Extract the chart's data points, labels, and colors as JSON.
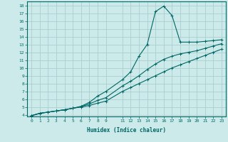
{
  "xlabel": "Humidex (Indice chaleur)",
  "background_color": "#cceaea",
  "grid_color": "#aacece",
  "line_color": "#006666",
  "xlim": [
    -0.5,
    23.5
  ],
  "ylim": [
    3.8,
    18.5
  ],
  "xticks": [
    0,
    1,
    2,
    3,
    4,
    5,
    6,
    7,
    8,
    9,
    11,
    12,
    13,
    14,
    15,
    16,
    17,
    18,
    19,
    20,
    21,
    22,
    23
  ],
  "yticks": [
    4,
    5,
    6,
    7,
    8,
    9,
    10,
    11,
    12,
    13,
    14,
    15,
    16,
    17,
    18
  ],
  "line1_x": [
    0,
    1,
    2,
    3,
    4,
    5,
    6,
    7,
    8,
    9,
    11,
    12,
    13,
    14,
    15,
    16,
    17,
    18,
    19,
    20,
    21,
    22,
    23
  ],
  "line1_y": [
    3.9,
    4.2,
    4.35,
    4.5,
    4.65,
    4.85,
    5.0,
    5.2,
    5.5,
    5.75,
    7.0,
    7.5,
    8.0,
    8.5,
    9.0,
    9.5,
    10.0,
    10.4,
    10.8,
    11.2,
    11.6,
    12.0,
    12.4
  ],
  "line2_x": [
    0,
    1,
    2,
    3,
    4,
    5,
    6,
    7,
    8,
    9,
    11,
    12,
    13,
    14,
    15,
    16,
    17,
    18,
    19,
    20,
    21,
    22,
    23
  ],
  "line2_y": [
    3.9,
    4.2,
    4.35,
    4.5,
    4.65,
    4.85,
    5.05,
    5.4,
    5.85,
    6.2,
    7.7,
    8.3,
    9.0,
    9.8,
    10.5,
    11.1,
    11.5,
    11.8,
    12.0,
    12.2,
    12.5,
    12.8,
    13.1
  ],
  "line3_x": [
    0,
    1,
    2,
    3,
    4,
    5,
    6,
    7,
    8,
    9,
    11,
    12,
    13,
    14,
    15,
    16,
    17,
    18,
    19,
    20,
    21,
    22,
    23
  ],
  "line3_y": [
    3.9,
    4.2,
    4.35,
    4.5,
    4.65,
    4.85,
    5.1,
    5.6,
    6.4,
    7.0,
    8.5,
    9.5,
    11.5,
    13.0,
    17.2,
    17.9,
    16.7,
    13.3,
    13.3,
    13.3,
    13.4,
    13.5,
    13.6
  ]
}
